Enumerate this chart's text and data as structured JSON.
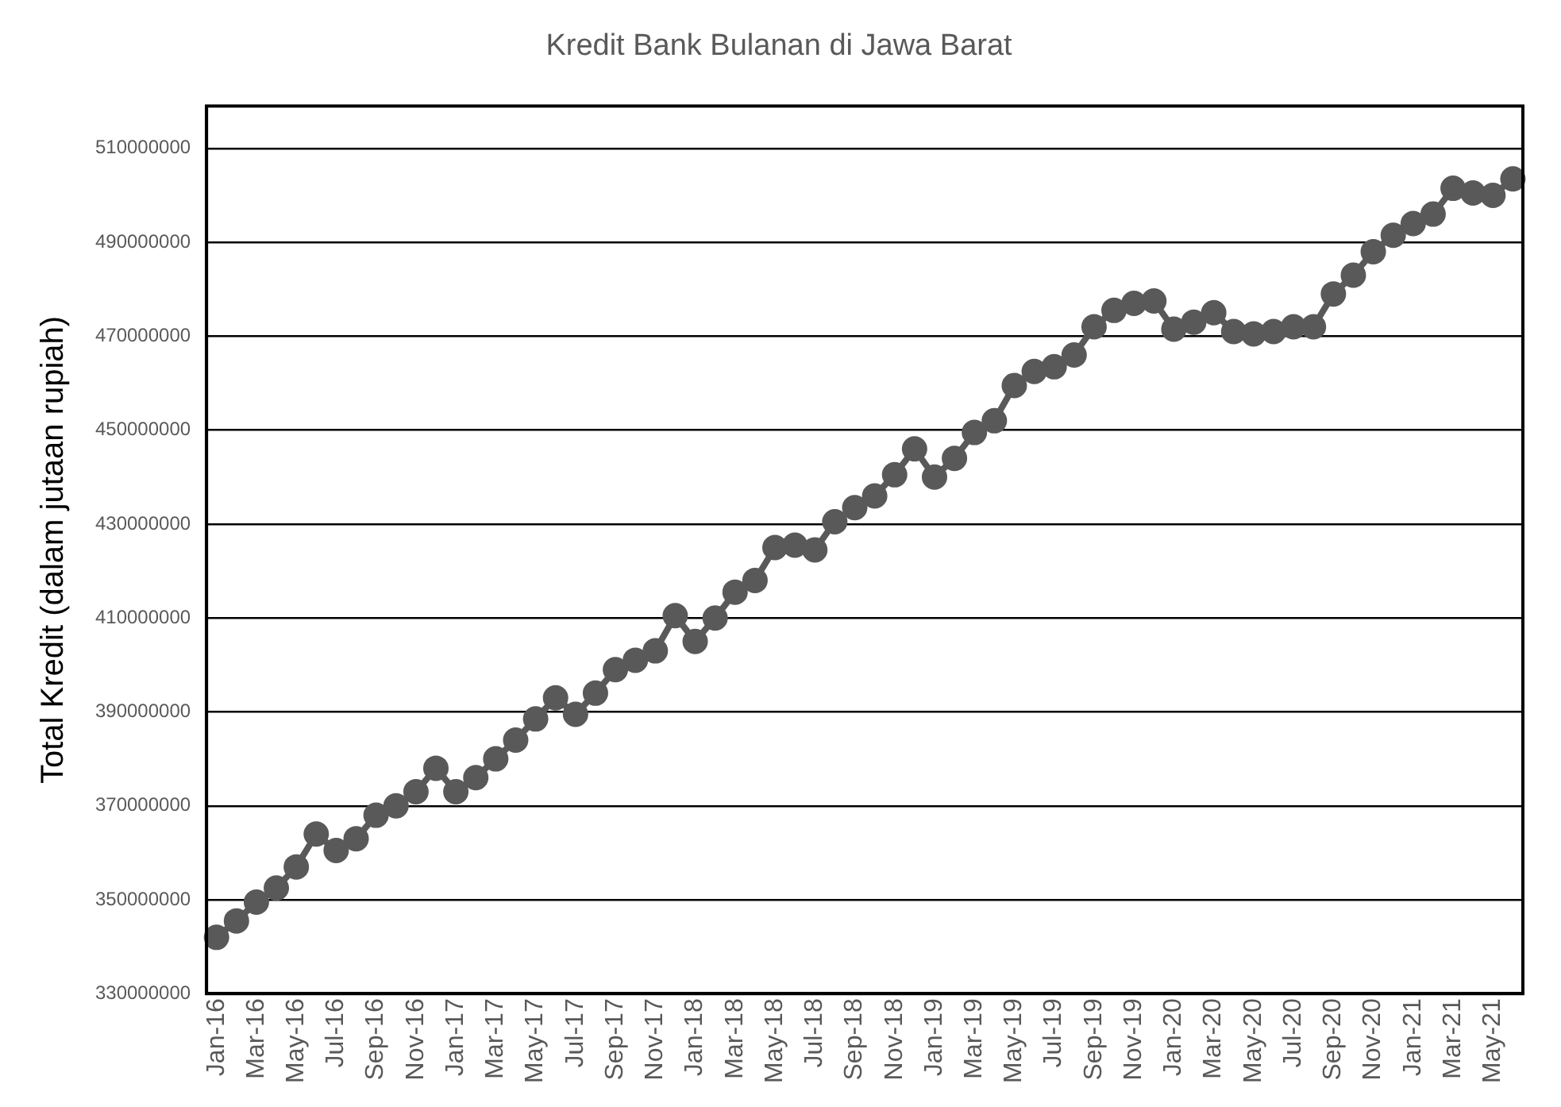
{
  "chart_data": {
    "type": "line",
    "title": "Kredit Bank Bulanan di Jawa Barat",
    "ylabel": "Total Kredit (dalam jutaan rupiah)",
    "categories": [
      "Jan-16",
      null,
      "Mar-16",
      null,
      "May-16",
      null,
      "Jul-16",
      null,
      "Sep-16",
      null,
      "Nov-16",
      null,
      "Jan-17",
      null,
      "Mar-17",
      null,
      "May-17",
      null,
      "Jul-17",
      null,
      "Sep-17",
      null,
      "Nov-17",
      null,
      "Jan-18",
      null,
      "Mar-18",
      null,
      "May-18",
      null,
      "Jul-18",
      null,
      "Sep-18",
      null,
      "Nov-18",
      null,
      "Jan-19",
      null,
      "Mar-19",
      null,
      "May-19",
      null,
      "Jul-19",
      null,
      "Sep-19",
      null,
      "Nov-19",
      null,
      "Jan-20",
      null,
      "Mar-20",
      null,
      "May-20",
      null,
      "Jul-20",
      null,
      "Sep-20",
      null,
      "Nov-20",
      null,
      "Jan-21",
      null,
      "Mar-21",
      null,
      "May-21",
      null
    ],
    "series": [
      {
        "color": "#595959",
        "values": [
          342000000,
          345500000,
          349500000,
          352500000,
          357000000,
          364000000,
          360500000,
          363000000,
          368000000,
          370000000,
          373000000,
          378000000,
          373000000,
          376000000,
          380000000,
          384000000,
          388500000,
          393000000,
          389500000,
          394000000,
          399000000,
          401000000,
          403000000,
          410500000,
          405000000,
          410000000,
          415500000,
          418000000,
          425000000,
          425500000,
          424500000,
          430500000,
          433500000,
          436000000,
          440500000,
          446000000,
          440000000,
          444000000,
          449500000,
          452000000,
          459500000,
          462500000,
          463500000,
          466000000,
          472000000,
          475500000,
          477000000,
          477500000,
          471500000,
          473000000,
          475000000,
          471000000,
          470500000,
          471000000,
          472000000,
          472000000,
          479000000,
          483000000,
          488000000,
          491500000,
          494000000,
          496000000,
          501500000,
          500500000,
          500000000,
          503500000
        ]
      }
    ],
    "ylim": [
      330000000,
      519000000
    ],
    "yticks": [
      330000000,
      350000000,
      370000000,
      390000000,
      410000000,
      430000000,
      450000000,
      470000000,
      490000000,
      510000000
    ],
    "grid": "y",
    "legend": false,
    "marker": "circle",
    "line_style": "solid"
  }
}
